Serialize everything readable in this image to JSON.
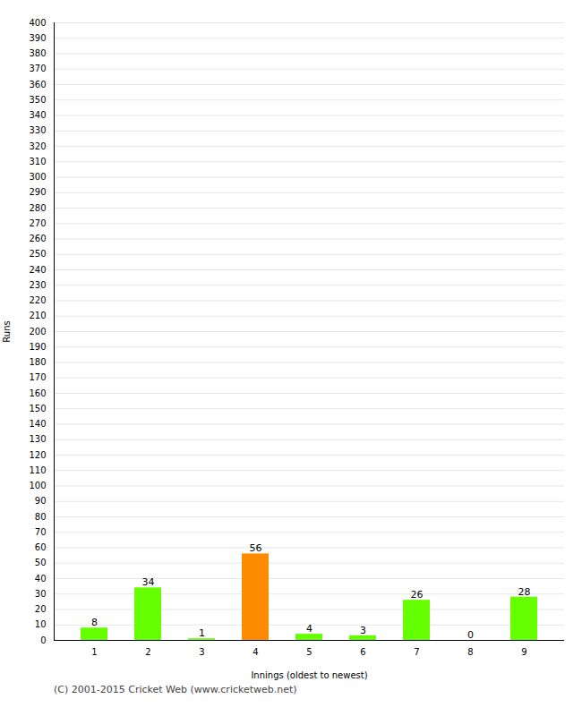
{
  "chart_data": {
    "type": "bar",
    "categories": [
      "1",
      "2",
      "3",
      "4",
      "5",
      "6",
      "7",
      "8",
      "9"
    ],
    "values": [
      8,
      34,
      1,
      56,
      4,
      3,
      26,
      0,
      28
    ],
    "colors": [
      "#66ff00",
      "#66ff00",
      "#66ff00",
      "#ff8c00",
      "#66ff00",
      "#66ff00",
      "#66ff00",
      "#66ff00",
      "#66ff00"
    ],
    "xlabel": "Innings (oldest to newest)",
    "ylabel": "Runs",
    "ylim": [
      0,
      400
    ],
    "yticks": [
      0,
      10,
      20,
      30,
      40,
      50,
      60,
      70,
      80,
      90,
      100,
      110,
      120,
      130,
      140,
      150,
      160,
      170,
      180,
      190,
      200,
      210,
      220,
      230,
      240,
      250,
      260,
      270,
      280,
      290,
      300,
      310,
      320,
      330,
      340,
      350,
      360,
      370,
      380,
      390,
      400
    ],
    "grid": true,
    "data_labels": true,
    "footer": "(C) 2001-2015 Cricket Web (www.cricketweb.net)"
  }
}
